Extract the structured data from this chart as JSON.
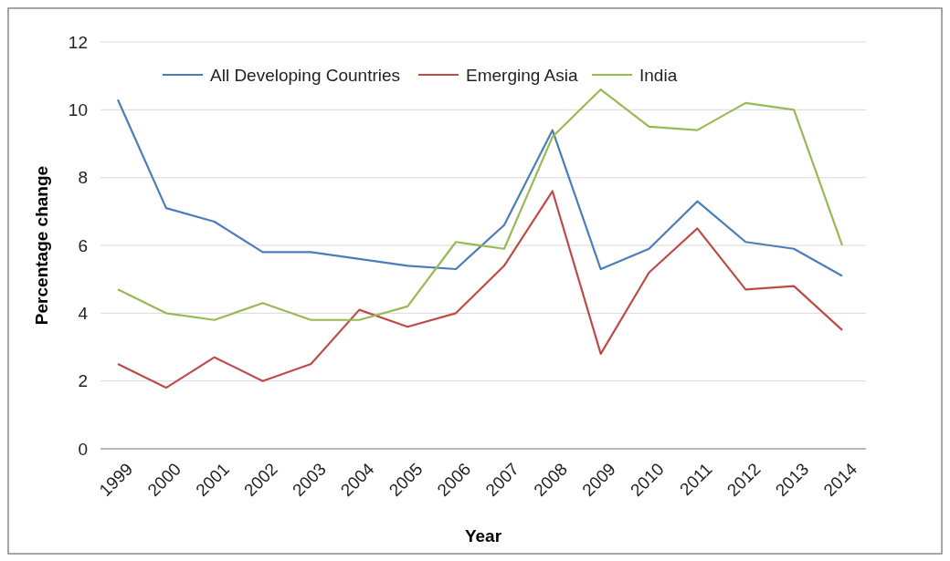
{
  "chart_data": {
    "type": "line",
    "xlabel": "Year",
    "ylabel": "Percentage change",
    "categories": [
      "1999",
      "2000",
      "2001",
      "2002",
      "2003",
      "2004",
      "2005",
      "2006",
      "2007",
      "2008",
      "2009",
      "2010",
      "2011",
      "2012",
      "2013",
      "2014"
    ],
    "series": [
      {
        "name": "All Developing Countries",
        "color": "#4a7ebb",
        "values": [
          10.3,
          7.1,
          6.7,
          5.8,
          5.8,
          5.6,
          5.4,
          5.3,
          6.6,
          9.4,
          5.3,
          5.9,
          7.3,
          6.1,
          5.9,
          5.1
        ]
      },
      {
        "name": "Emerging Asia",
        "color": "#be4b48",
        "values": [
          2.5,
          1.8,
          2.7,
          2.0,
          2.5,
          4.1,
          3.6,
          4.0,
          5.4,
          7.6,
          2.8,
          5.2,
          6.5,
          4.7,
          4.8,
          3.5
        ]
      },
      {
        "name": "India",
        "color": "#98b954",
        "values": [
          4.7,
          4.0,
          3.8,
          4.3,
          3.8,
          3.8,
          4.2,
          6.1,
          5.9,
          9.2,
          10.6,
          9.5,
          9.4,
          10.2,
          10.0,
          6.0
        ]
      }
    ],
    "ylim": [
      0,
      12
    ],
    "yticks": [
      0,
      2,
      4,
      6,
      8,
      10,
      12
    ],
    "grid": "y",
    "legend": "top",
    "marker": "none",
    "line_style": "solid"
  }
}
